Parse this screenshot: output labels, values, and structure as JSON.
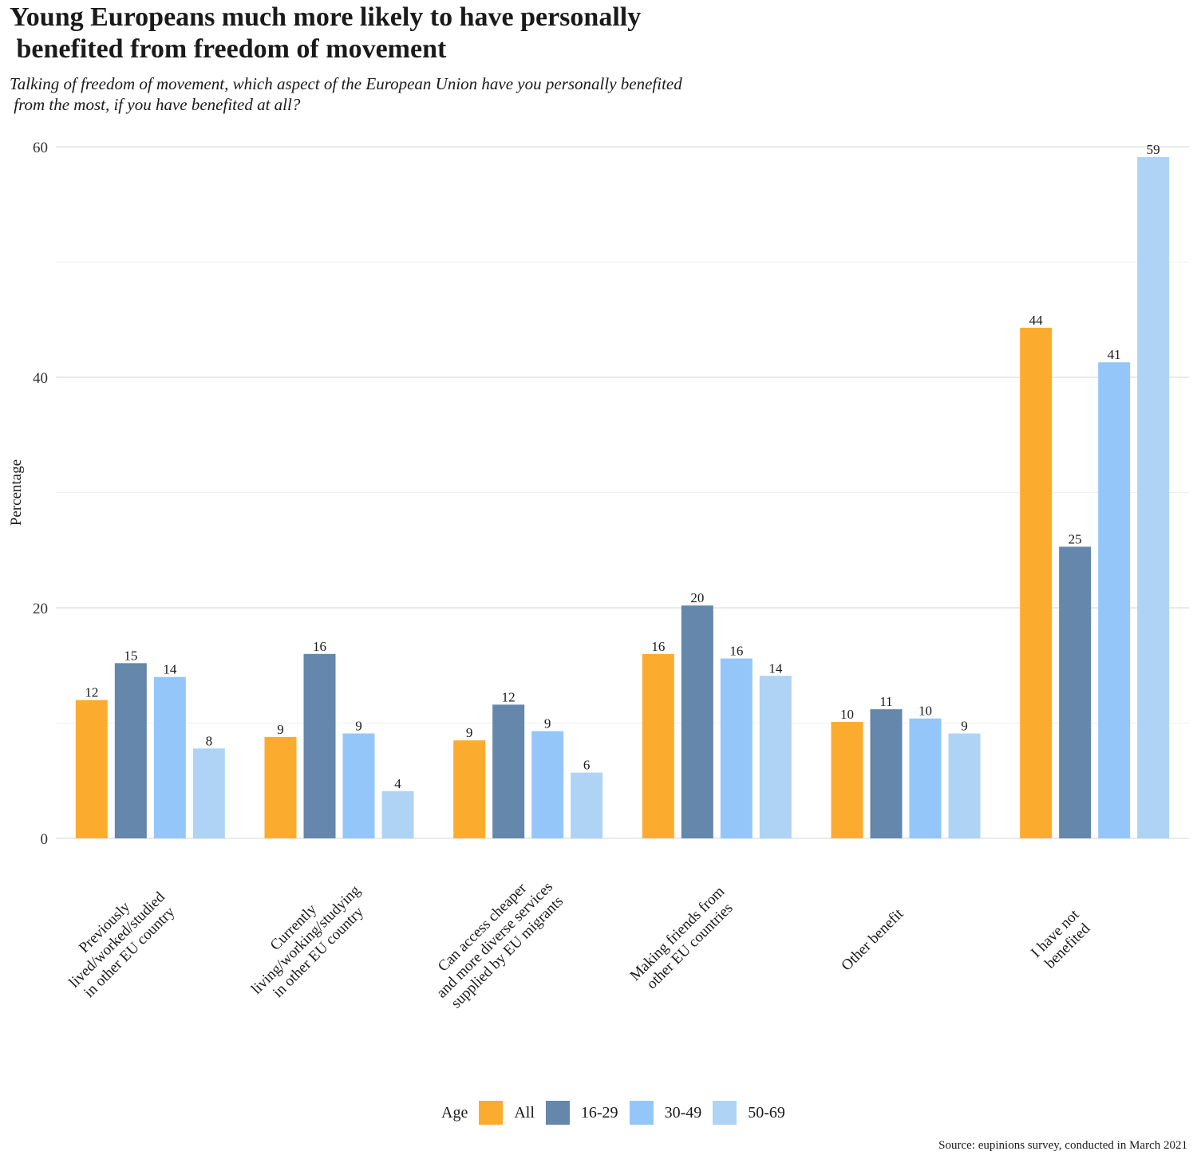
{
  "chart_data": {
    "type": "bar",
    "title": "Young Europeans much more likely to have personally\n benefited from freedom of movement",
    "subtitle": "Talking of freedom of movement, which aspect of the European Union have you personally benefited\n from the most, if you have benefited at all?",
    "xlabel": "",
    "ylabel": "Percentage",
    "ylim": [
      0,
      60
    ],
    "yticks": [
      0,
      20,
      40,
      60
    ],
    "grid": true,
    "legend_title": "Age",
    "legend_position": "bottom",
    "categories": [
      "Previously\nlived/worked/studied\nin other EU country",
      "Currently\nliving/working/studying\nin other EU country",
      "Can access cheaper\nand more diverse services\nsupplied by EU migrants",
      "Making friends from\nother EU countries",
      "Other benefit",
      "I have not\nbenefited"
    ],
    "series": [
      {
        "name": "All",
        "color": "#FBAC2F",
        "values": [
          12,
          9,
          9,
          16,
          10,
          44
        ],
        "display_heights": [
          12.0,
          8.8,
          8.5,
          16.0,
          10.1,
          44.3
        ]
      },
      {
        "name": "16-29",
        "color": "#6487AB",
        "values": [
          15,
          16,
          12,
          20,
          11,
          25
        ],
        "display_heights": [
          15.2,
          16.0,
          11.6,
          20.2,
          11.2,
          25.3
        ]
      },
      {
        "name": "30-49",
        "color": "#94C6FA",
        "values": [
          14,
          9,
          9,
          16,
          10,
          41
        ],
        "display_heights": [
          14.0,
          9.1,
          9.3,
          15.6,
          10.4,
          41.3
        ]
      },
      {
        "name": "50-69",
        "color": "#AED3F5",
        "values": [
          8,
          4,
          6,
          14,
          9,
          59
        ],
        "display_heights": [
          7.8,
          4.1,
          5.7,
          14.1,
          9.1,
          59.1
        ]
      }
    ],
    "source": "Source: eupinions survey, conducted in March 2021"
  }
}
